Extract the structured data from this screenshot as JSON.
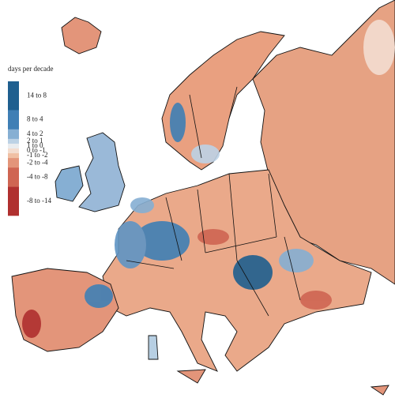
{
  "legend": {
    "title": "days per decade",
    "items": [
      {
        "label": "14 to 8",
        "color": "#1f5f8f"
      },
      {
        "label": "8 to 4",
        "color": "#3f7fb5"
      },
      {
        "label": "4 to 2",
        "color": "#86afd3"
      },
      {
        "label": "2 to 1",
        "color": "#bcd2e5"
      },
      {
        "label": "1 to 0",
        "color": "#e9ecef"
      },
      {
        "label": "0 to -1",
        "color": "#f3ddd0"
      },
      {
        "label": "-1 to -2",
        "color": "#f0c0a4"
      },
      {
        "label": "-2 to -4",
        "color": "#e3957a"
      },
      {
        "label": "-4 to -8",
        "color": "#cf6552"
      },
      {
        "label": "-8 to -14",
        "color": "#b0302f"
      }
    ]
  }
}
